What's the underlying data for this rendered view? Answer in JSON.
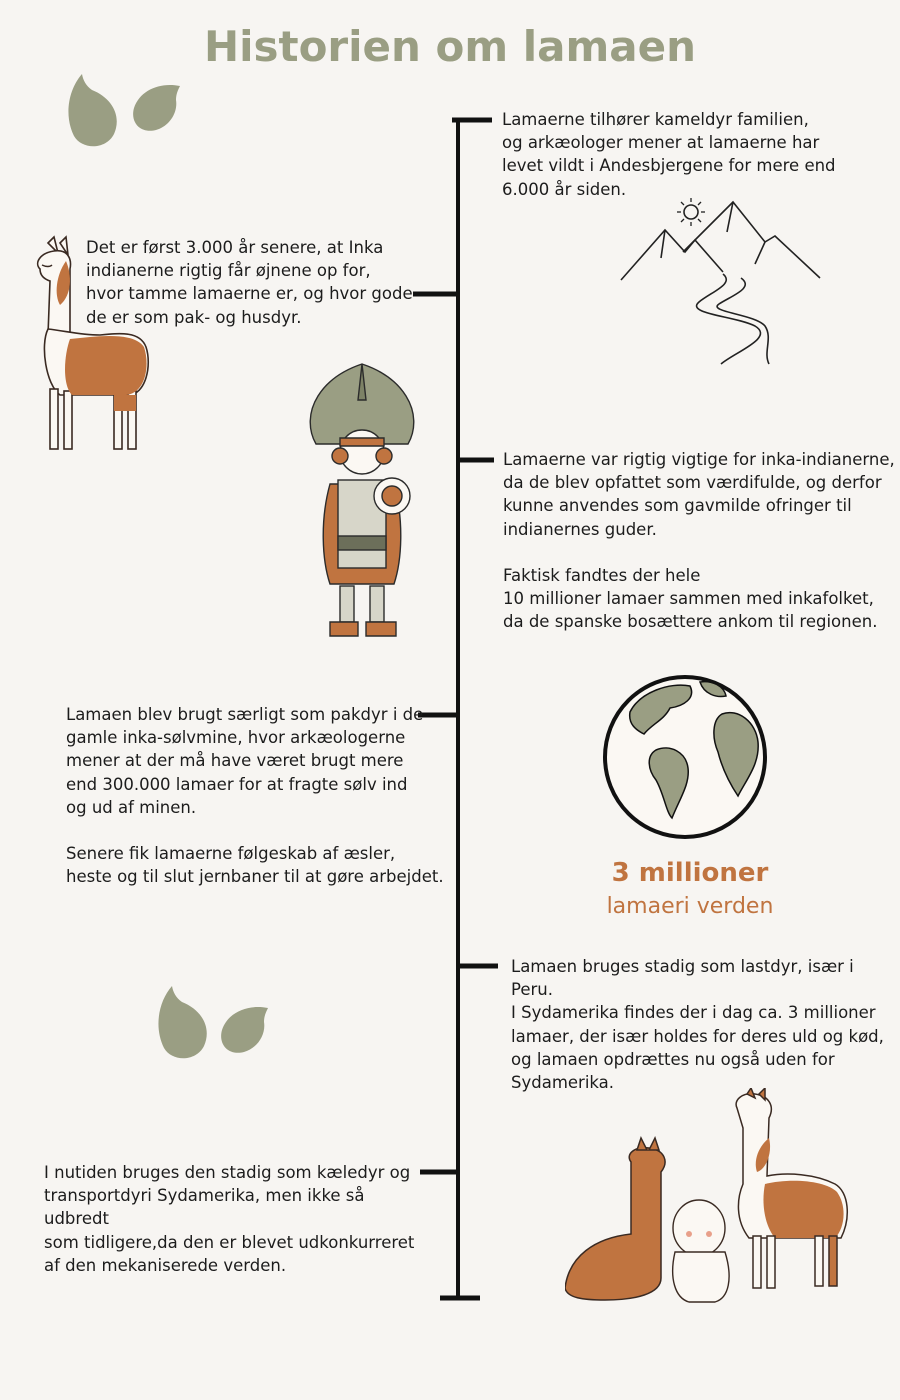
{
  "title": "Historien om lamaen",
  "entries": [
    "Lamaerne tilhører kameldyr familien,\nog arkæologer mener at lamaerne har\nlevet vildt i Andesbjergene for mere end\n6.000 år siden.",
    "Det er først 3.000 år senere, at Inka\nindianerne rigtig får øjnene op for,\nhvor tamme lamaerne er, og hvor gode\nde er som pak- og husdyr.",
    "Lamaerne var rigtig vigtige for inka-indianerne,\nda de blev opfattet som værdifulde, og derfor\nkunne anvendes som gavmilde ofringer til\nindianernes guder.\n\nFaktisk fandtes der hele\n10 millioner lamaer sammen med inkafolket,\n da de spanske bosættere ankom til regionen.",
    "Lamaen blev brugt særligt som pakdyr i de\ngamle inka-sølvmine, hvor arkæologerne\nmener at der må have været brugt mere\nend 300.000 lamaer for at fragte sølv ind\nog ud af minen.\n\nSenere fik lamaerne følgeskab af æsler,\nheste og til slut jernbaner til at gøre arbejdet.",
    "Lamaen bruges stadig som lastdyr, især i Peru.\nI Sydamerika findes der i dag ca. 3 millioner\nlamaer, der især holdes for deres uld og kød,\nog lamaen opdrættes nu også uden for\nSydamerika.",
    "I nutiden bruges den stadig som kæledyr og\n transportdyri Sydamerika, men ikke så udbredt\nsom tidligere,da den er blevet udkonkurreret\naf den mekaniserede verden."
  ],
  "stat": {
    "value": "3 millioner",
    "label": "lamaeri verden"
  },
  "colors": {
    "background": "#f7f5f2",
    "title": "#9a9e83",
    "accent": "#c07440",
    "leaf": "#9a9e83",
    "line": "#111111"
  },
  "icons": [
    "leaf-icon",
    "llama-icon",
    "mountains-icon",
    "inca-warrior-icon",
    "globe-icon",
    "llamas-and-child-icon"
  ]
}
